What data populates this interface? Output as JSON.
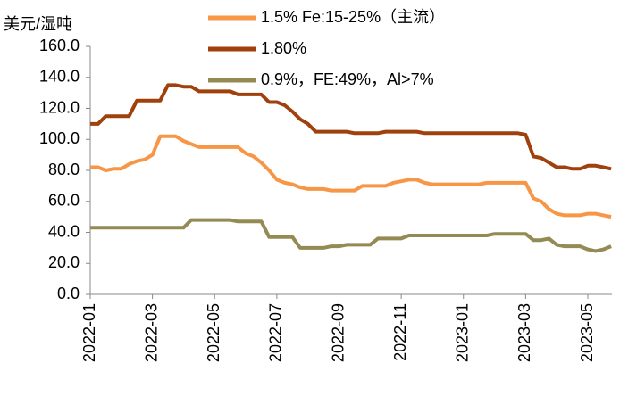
{
  "chart_data": {
    "type": "line",
    "y_label": "美元/湿吨",
    "categories": [
      "2022-01",
      null,
      null,
      null,
      null,
      null,
      null,
      null,
      "2022-03",
      null,
      null,
      null,
      null,
      null,
      null,
      null,
      "2022-05",
      null,
      null,
      null,
      null,
      null,
      null,
      null,
      "2022-07",
      null,
      null,
      null,
      null,
      null,
      null,
      null,
      "2022-09",
      null,
      null,
      null,
      null,
      null,
      null,
      null,
      "2022-11",
      null,
      null,
      null,
      null,
      null,
      null,
      null,
      "2023-01",
      null,
      null,
      null,
      null,
      null,
      null,
      null,
      "2023-03",
      null,
      null,
      null,
      null,
      null,
      null,
      null,
      "2023-05",
      null,
      null,
      null
    ],
    "series": [
      {
        "name": "1.5% Fe:15-25%（主流）",
        "color": "#f79646",
        "values": [
          82,
          82,
          80,
          81,
          81,
          84,
          86,
          87,
          90,
          102,
          102,
          102,
          99,
          97,
          95,
          95,
          95,
          95,
          95,
          95,
          91,
          89,
          85,
          80,
          74,
          72,
          71,
          69,
          68,
          68,
          68,
          67,
          67,
          67,
          67,
          70,
          70,
          70,
          70,
          72,
          73,
          74,
          74,
          72,
          71,
          71,
          71,
          71,
          71,
          71,
          71,
          72,
          72,
          72,
          72,
          72,
          72,
          62,
          60,
          55,
          52,
          51,
          51,
          51,
          52,
          52,
          51,
          50
        ]
      },
      {
        "name": "1.80%",
        "color": "#a0410d",
        "values": [
          110,
          110,
          115,
          115,
          115,
          115,
          125,
          125,
          125,
          125,
          135,
          135,
          134,
          134,
          131,
          131,
          131,
          131,
          131,
          129,
          129,
          129,
          129,
          124,
          124,
          122,
          118,
          113,
          110,
          105,
          105,
          105,
          105,
          105,
          104,
          104,
          104,
          104,
          105,
          105,
          105,
          105,
          105,
          104,
          104,
          104,
          104,
          104,
          104,
          104,
          104,
          104,
          104,
          104,
          104,
          104,
          103,
          89,
          88,
          85,
          82,
          82,
          81,
          81,
          83,
          83,
          82,
          81
        ]
      },
      {
        "name": "0.9%，FE:49%，Al>7%",
        "color": "#948a54",
        "values": [
          43,
          43,
          43,
          43,
          43,
          43,
          43,
          43,
          43,
          43,
          43,
          43,
          43,
          48,
          48,
          48,
          48,
          48,
          48,
          47,
          47,
          47,
          47,
          37,
          37,
          37,
          37,
          30,
          30,
          30,
          30,
          31,
          31,
          32,
          32,
          32,
          32,
          36,
          36,
          36,
          36,
          38,
          38,
          38,
          38,
          38,
          38,
          38,
          38,
          38,
          38,
          38,
          39,
          39,
          39,
          39,
          39,
          35,
          35,
          36,
          32,
          31,
          31,
          31,
          29,
          28,
          29,
          31
        ]
      }
    ],
    "ylim": [
      0,
      160
    ],
    "yticks": [
      {
        "value": 0,
        "label": "0.0"
      },
      {
        "value": 20,
        "label": "20.0"
      },
      {
        "value": 40,
        "label": "40.0"
      },
      {
        "value": 60,
        "label": "60.0"
      },
      {
        "value": 80,
        "label": "80.0"
      },
      {
        "value": 100,
        "label": "100.0"
      },
      {
        "value": 120,
        "label": "120.0"
      },
      {
        "value": 140,
        "label": "140.0"
      },
      {
        "value": 160,
        "label": "160.0"
      }
    ],
    "grid": false
  }
}
